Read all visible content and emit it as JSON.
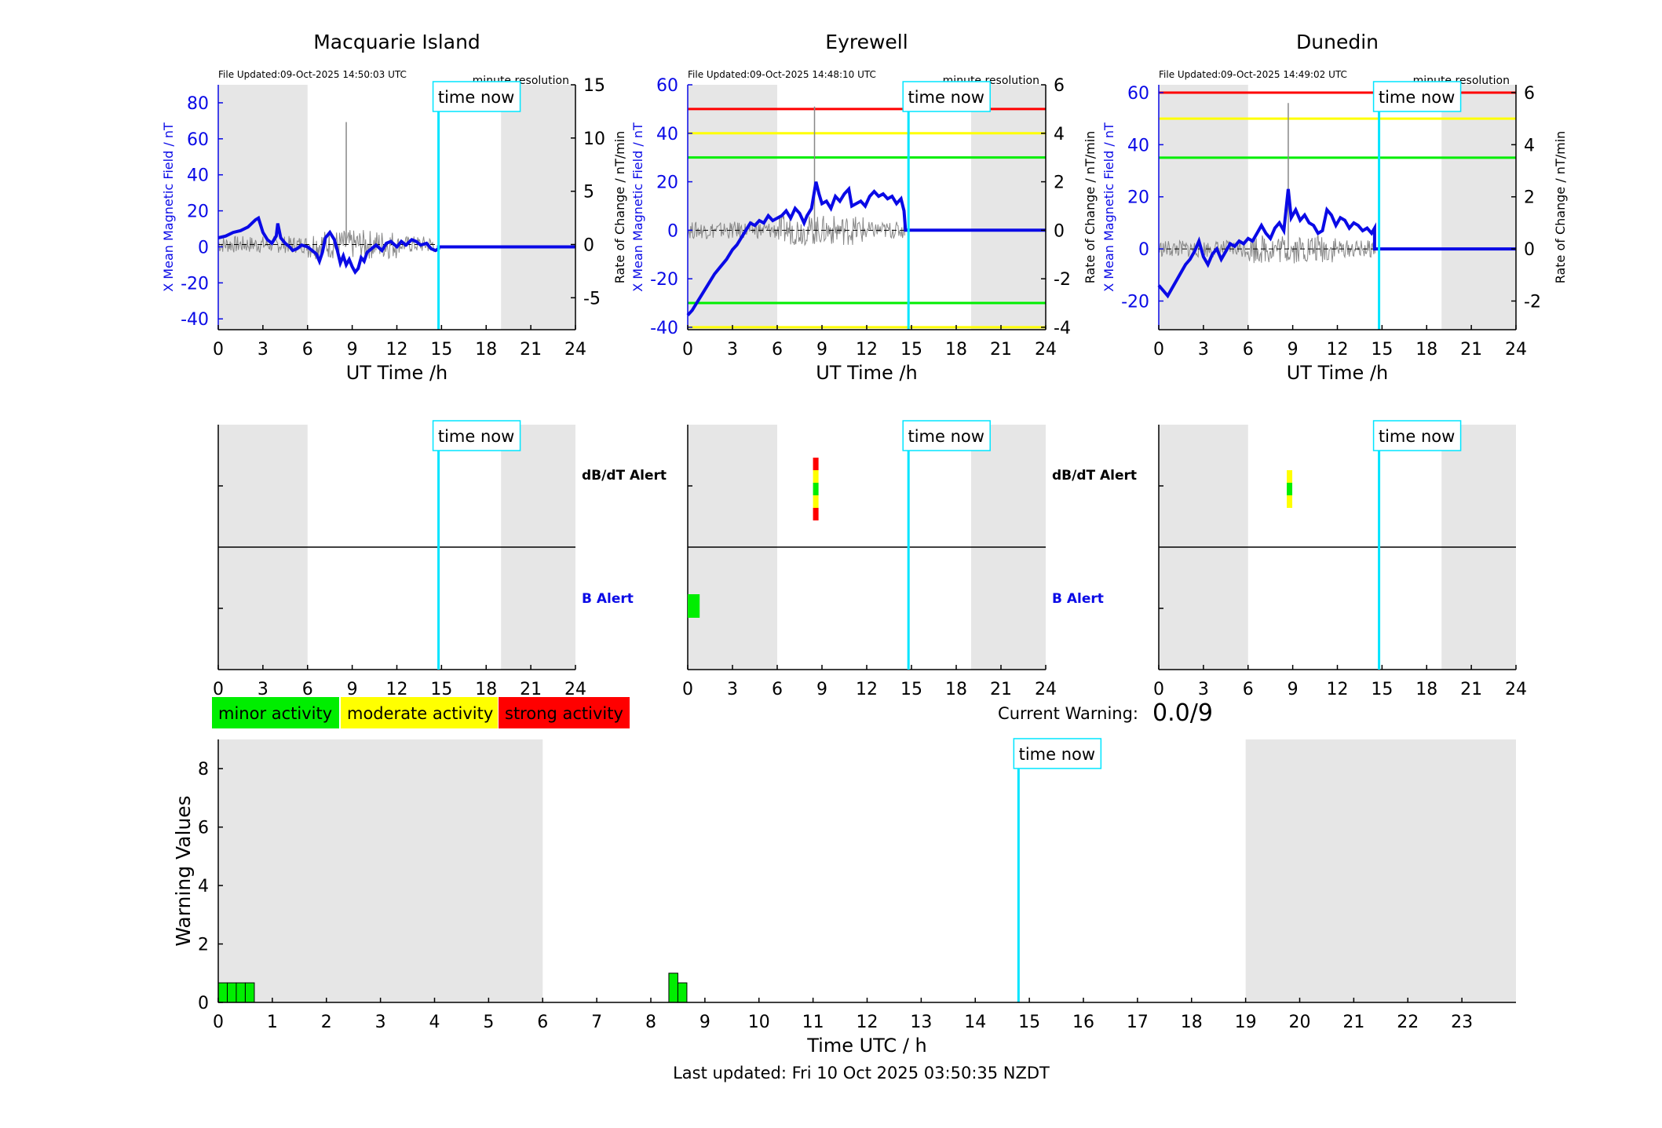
{
  "colors": {
    "field": "#0a0ae6",
    "rate": "#888888",
    "red": "#ff0000",
    "yellow": "#ffff00",
    "green": "#00ee00",
    "cyan": "#00e5ff",
    "night": "#e6e6e6",
    "dbdt_label": "#000000",
    "b_label": "#0a0ae6"
  },
  "stations": [
    {
      "name": "Macquarie Island",
      "file_updated": "File Updated:09-Oct-2025 14:50:03 UTC",
      "resolution": "minute resolution",
      "time_now_label": "time now",
      "time_now_h": 14.8,
      "night_start": 0,
      "night_end": 6,
      "night2_start": 19.0,
      "night2_end": 24,
      "xlabel": "UT Time /h",
      "ylabel_left": "X Mean Magnetic Field / nT",
      "ylabel_right": "Rate of Change / nT/min",
      "ylim": [
        -46,
        90
      ],
      "yticks": [
        -40,
        -20,
        0,
        20,
        40,
        60,
        80
      ],
      "ylim_right": [
        -8,
        15
      ],
      "yticks_right": [
        -5,
        0,
        5,
        10,
        15
      ],
      "xticks": [
        0,
        3,
        6,
        9,
        12,
        15,
        18,
        21,
        24
      ],
      "thresholds": [],
      "field_series": [
        [
          0,
          5
        ],
        [
          0.5,
          6
        ],
        [
          1,
          8
        ],
        [
          1.5,
          9
        ],
        [
          2,
          11
        ],
        [
          2.5,
          15
        ],
        [
          2.7,
          16
        ],
        [
          3,
          8
        ],
        [
          3.3,
          4
        ],
        [
          3.6,
          2
        ],
        [
          3.9,
          6
        ],
        [
          4,
          13
        ],
        [
          4.2,
          5
        ],
        [
          4.5,
          2
        ],
        [
          4.8,
          0
        ],
        [
          5,
          -2
        ],
        [
          5.3,
          -1
        ],
        [
          5.6,
          1
        ],
        [
          6,
          0
        ],
        [
          6.3,
          -2
        ],
        [
          6.6,
          -4
        ],
        [
          6.8,
          -8
        ],
        [
          7,
          -3
        ],
        [
          7.2,
          5
        ],
        [
          7.5,
          8
        ],
        [
          7.8,
          4
        ],
        [
          8,
          -2
        ],
        [
          8.2,
          -9
        ],
        [
          8.4,
          -5
        ],
        [
          8.6,
          -10
        ],
        [
          8.8,
          -7
        ],
        [
          9,
          -11
        ],
        [
          9.2,
          -14
        ],
        [
          9.4,
          -12
        ],
        [
          9.6,
          -6
        ],
        [
          9.8,
          -8
        ],
        [
          10,
          -3
        ],
        [
          10.3,
          -1
        ],
        [
          10.6,
          1
        ],
        [
          11,
          -2
        ],
        [
          11.3,
          2
        ],
        [
          11.6,
          3
        ],
        [
          12,
          0
        ],
        [
          12.3,
          3
        ],
        [
          12.6,
          1
        ],
        [
          13,
          4
        ],
        [
          13.3,
          3
        ],
        [
          13.6,
          1
        ],
        [
          14,
          2
        ],
        [
          14.3,
          -1
        ],
        [
          14.6,
          -2
        ],
        [
          14.8,
          -1
        ],
        [
          14.8,
          0
        ],
        [
          24,
          0
        ]
      ],
      "rate_peak": {
        "h": 8.6,
        "value": 11.5
      },
      "dbdt_bars": [],
      "b_bars": []
    },
    {
      "name": "Eyrewell",
      "file_updated": "File Updated:09-Oct-2025 14:48:10 UTC",
      "resolution": "minute resolution",
      "time_now_label": "time now",
      "time_now_h": 14.8,
      "night_start": 0,
      "night_end": 6,
      "night2_start": 19.0,
      "night2_end": 24,
      "xlabel": "UT Time /h",
      "ylabel_left": "X Mean Magnetic Field / nT",
      "ylabel_right": "Rate of Change / nT/min",
      "ylim": [
        -41,
        60
      ],
      "yticks": [
        -40,
        -20,
        0,
        20,
        40,
        60
      ],
      "ylim_right": [
        -4.1,
        6
      ],
      "yticks_right": [
        -4,
        -2,
        0,
        2,
        4,
        6
      ],
      "xticks": [
        0,
        3,
        6,
        9,
        12,
        15,
        18,
        21,
        24
      ],
      "thresholds": [
        {
          "value": 50,
          "color": "red"
        },
        {
          "value": 40,
          "color": "yellow"
        },
        {
          "value": 30,
          "color": "green"
        },
        {
          "value": -30,
          "color": "green"
        },
        {
          "value": -40,
          "color": "yellow"
        }
      ],
      "field_series": [
        [
          0,
          -35
        ],
        [
          0.3,
          -33
        ],
        [
          0.6,
          -30
        ],
        [
          1,
          -26
        ],
        [
          1.4,
          -22
        ],
        [
          1.8,
          -18
        ],
        [
          2.2,
          -15
        ],
        [
          2.6,
          -12
        ],
        [
          3,
          -8
        ],
        [
          3.3,
          -6
        ],
        [
          3.6,
          -3
        ],
        [
          3.9,
          0
        ],
        [
          4.2,
          3
        ],
        [
          4.5,
          2
        ],
        [
          4.8,
          4
        ],
        [
          5.1,
          3
        ],
        [
          5.4,
          6
        ],
        [
          5.7,
          4
        ],
        [
          6,
          5
        ],
        [
          6.3,
          6
        ],
        [
          6.6,
          8
        ],
        [
          6.9,
          5
        ],
        [
          7.2,
          9
        ],
        [
          7.5,
          7
        ],
        [
          7.8,
          3
        ],
        [
          8,
          6
        ],
        [
          8.3,
          9
        ],
        [
          8.6,
          20
        ],
        [
          8.8,
          15
        ],
        [
          9,
          11
        ],
        [
          9.3,
          12
        ],
        [
          9.6,
          9
        ],
        [
          9.9,
          14
        ],
        [
          10.2,
          12
        ],
        [
          10.5,
          15
        ],
        [
          10.8,
          17
        ],
        [
          11,
          10
        ],
        [
          11.3,
          11
        ],
        [
          11.6,
          12
        ],
        [
          11.9,
          10
        ],
        [
          12.2,
          14
        ],
        [
          12.5,
          16
        ],
        [
          12.8,
          14
        ],
        [
          13.1,
          15
        ],
        [
          13.4,
          13
        ],
        [
          13.7,
          14
        ],
        [
          14,
          11
        ],
        [
          14.3,
          13
        ],
        [
          14.5,
          8
        ],
        [
          14.6,
          0
        ],
        [
          24,
          0
        ]
      ],
      "rate_peak": {
        "h": 8.5,
        "value": 5.1
      },
      "dbdt_bars": [
        {
          "h": 8.4,
          "colors": [
            "red",
            "yellow",
            "green",
            "yellow",
            "red"
          ]
        }
      ],
      "b_bars": [
        {
          "h": 0.0,
          "w": 0.8,
          "color": "green"
        }
      ]
    },
    {
      "name": "Dunedin",
      "file_updated": "File Updated:09-Oct-2025 14:49:02 UTC",
      "resolution": "minute resolution",
      "time_now_label": "time now",
      "time_now_h": 14.8,
      "night_start": 0,
      "night_end": 6,
      "night2_start": 19.0,
      "night2_end": 24,
      "xlabel": "UT Time /h",
      "ylabel_left": "X Mean Magnetic Field / nT",
      "ylabel_right": "Rate of Change / nT/min",
      "ylim": [
        -31,
        63
      ],
      "yticks": [
        -20,
        0,
        20,
        40,
        60
      ],
      "ylim_right": [
        -3.1,
        6.3
      ],
      "yticks_right": [
        -2,
        0,
        2,
        4,
        6
      ],
      "xticks": [
        0,
        3,
        6,
        9,
        12,
        15,
        18,
        21,
        24
      ],
      "thresholds": [
        {
          "value": 60,
          "color": "red"
        },
        {
          "value": 50,
          "color": "yellow"
        },
        {
          "value": 35,
          "color": "green"
        }
      ],
      "field_series": [
        [
          0,
          -14
        ],
        [
          0.3,
          -16
        ],
        [
          0.6,
          -18
        ],
        [
          0.9,
          -15
        ],
        [
          1.2,
          -12
        ],
        [
          1.5,
          -9
        ],
        [
          1.8,
          -6
        ],
        [
          2.1,
          -4
        ],
        [
          2.4,
          -1
        ],
        [
          2.7,
          3
        ],
        [
          3,
          -3
        ],
        [
          3.3,
          -6
        ],
        [
          3.6,
          -2
        ],
        [
          3.9,
          0
        ],
        [
          4.2,
          -4
        ],
        [
          4.5,
          -1
        ],
        [
          4.8,
          2
        ],
        [
          5.1,
          1
        ],
        [
          5.4,
          3
        ],
        [
          5.7,
          2
        ],
        [
          6,
          4
        ],
        [
          6.3,
          3
        ],
        [
          6.6,
          6
        ],
        [
          6.9,
          9
        ],
        [
          7.2,
          6
        ],
        [
          7.5,
          4
        ],
        [
          7.8,
          8
        ],
        [
          8.1,
          10
        ],
        [
          8.4,
          7
        ],
        [
          8.7,
          23
        ],
        [
          8.9,
          12
        ],
        [
          9.2,
          15
        ],
        [
          9.5,
          11
        ],
        [
          9.8,
          13
        ],
        [
          10.1,
          10
        ],
        [
          10.4,
          9
        ],
        [
          10.7,
          6
        ],
        [
          11,
          7
        ],
        [
          11.3,
          15
        ],
        [
          11.6,
          13
        ],
        [
          11.9,
          9
        ],
        [
          12.2,
          12
        ],
        [
          12.5,
          11
        ],
        [
          12.8,
          8
        ],
        [
          13.1,
          10
        ],
        [
          13.4,
          9
        ],
        [
          13.7,
          7
        ],
        [
          14,
          8
        ],
        [
          14.3,
          6
        ],
        [
          14.5,
          8
        ],
        [
          14.5,
          0
        ],
        [
          24,
          0
        ]
      ],
      "rate_peak": {
        "h": 8.7,
        "value": 5.6
      },
      "dbdt_bars": [
        {
          "h": 8.6,
          "colors": [
            "yellow",
            "green",
            "yellow"
          ]
        }
      ],
      "b_bars": []
    }
  ],
  "alerts": {
    "dbdt_label": "dB/dT Alert",
    "b_label": "B Alert",
    "xticks": [
      0,
      3,
      6,
      9,
      12,
      15,
      18,
      21,
      24
    ]
  },
  "legend": [
    {
      "label": "minor activity",
      "color": "green"
    },
    {
      "label": "moderate activity",
      "color": "yellow"
    },
    {
      "label": "strong activity",
      "color": "red"
    }
  ],
  "current_warning": {
    "label": "Current Warning:",
    "value": "0.0/9"
  },
  "chart_data": {
    "type": "bar",
    "xlabel": "Time UTC / h",
    "ylabel": "Warning Values",
    "ylim": [
      0,
      9
    ],
    "yticks": [
      0,
      2,
      4,
      6,
      8
    ],
    "xticks": [
      0,
      1,
      2,
      3,
      4,
      5,
      6,
      7,
      8,
      9,
      10,
      11,
      12,
      13,
      14,
      15,
      16,
      17,
      18,
      19,
      20,
      21,
      22,
      23
    ],
    "xlim": [
      0,
      24
    ],
    "time_now_label": "time now",
    "time_now_h": 14.8,
    "night_start": 0,
    "night_end": 6,
    "night2_start": 19.0,
    "night2_end": 24,
    "bars": [
      {
        "h": 0.0,
        "value": 0.67
      },
      {
        "h": 0.167,
        "value": 0.67
      },
      {
        "h": 0.333,
        "value": 0.67
      },
      {
        "h": 0.5,
        "value": 0.67
      },
      {
        "h": 8.333,
        "value": 1.0
      },
      {
        "h": 8.5,
        "value": 0.67
      }
    ],
    "bar_width_h": 0.167
  },
  "last_updated": "Last updated: Fri 10 Oct 2025 03:50:35 NZDT"
}
